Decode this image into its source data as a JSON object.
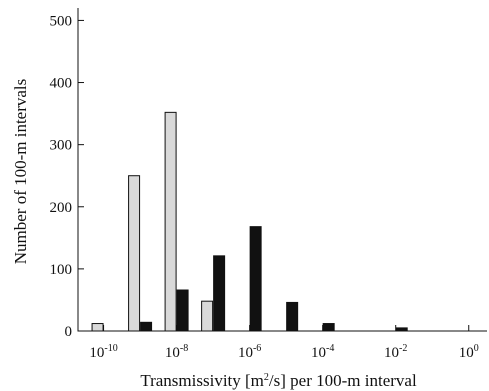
{
  "chart_data": {
    "type": "bar",
    "xlabel_parts": [
      "Transmissivity [m",
      "2",
      "/s] per 100-m interval"
    ],
    "ylabel": "Number of 100-m intervals",
    "x_scale": "log10",
    "xlim_exponent": [
      -10.7,
      0.5
    ],
    "ylim": [
      0,
      520
    ],
    "x_ticks": [
      {
        "base": "10",
        "exp": "-10",
        "value": -10
      },
      {
        "base": "10",
        "exp": "-8",
        "value": -8
      },
      {
        "base": "10",
        "exp": "-6",
        "value": -6
      },
      {
        "base": "10",
        "exp": "-4",
        "value": -4
      },
      {
        "base": "10",
        "exp": "-2",
        "value": -2
      },
      {
        "base": "10",
        "exp": "0",
        "value": 0
      }
    ],
    "y_ticks": [
      "0",
      "100",
      "200",
      "300",
      "400",
      "500"
    ],
    "bin_log10_transmissivity": [
      -10,
      -9,
      -8,
      -7,
      -6,
      -5,
      -4,
      -3,
      -2,
      -1
    ],
    "series": [
      {
        "color": "#d9d9d9",
        "values": [
          12,
          250,
          352,
          48,
          0,
          0,
          0,
          0,
          0,
          0
        ]
      },
      {
        "color": "#111111",
        "values": [
          0,
          14,
          66,
          121,
          168,
          46,
          12,
          0,
          5,
          0
        ]
      }
    ],
    "grid": false
  }
}
